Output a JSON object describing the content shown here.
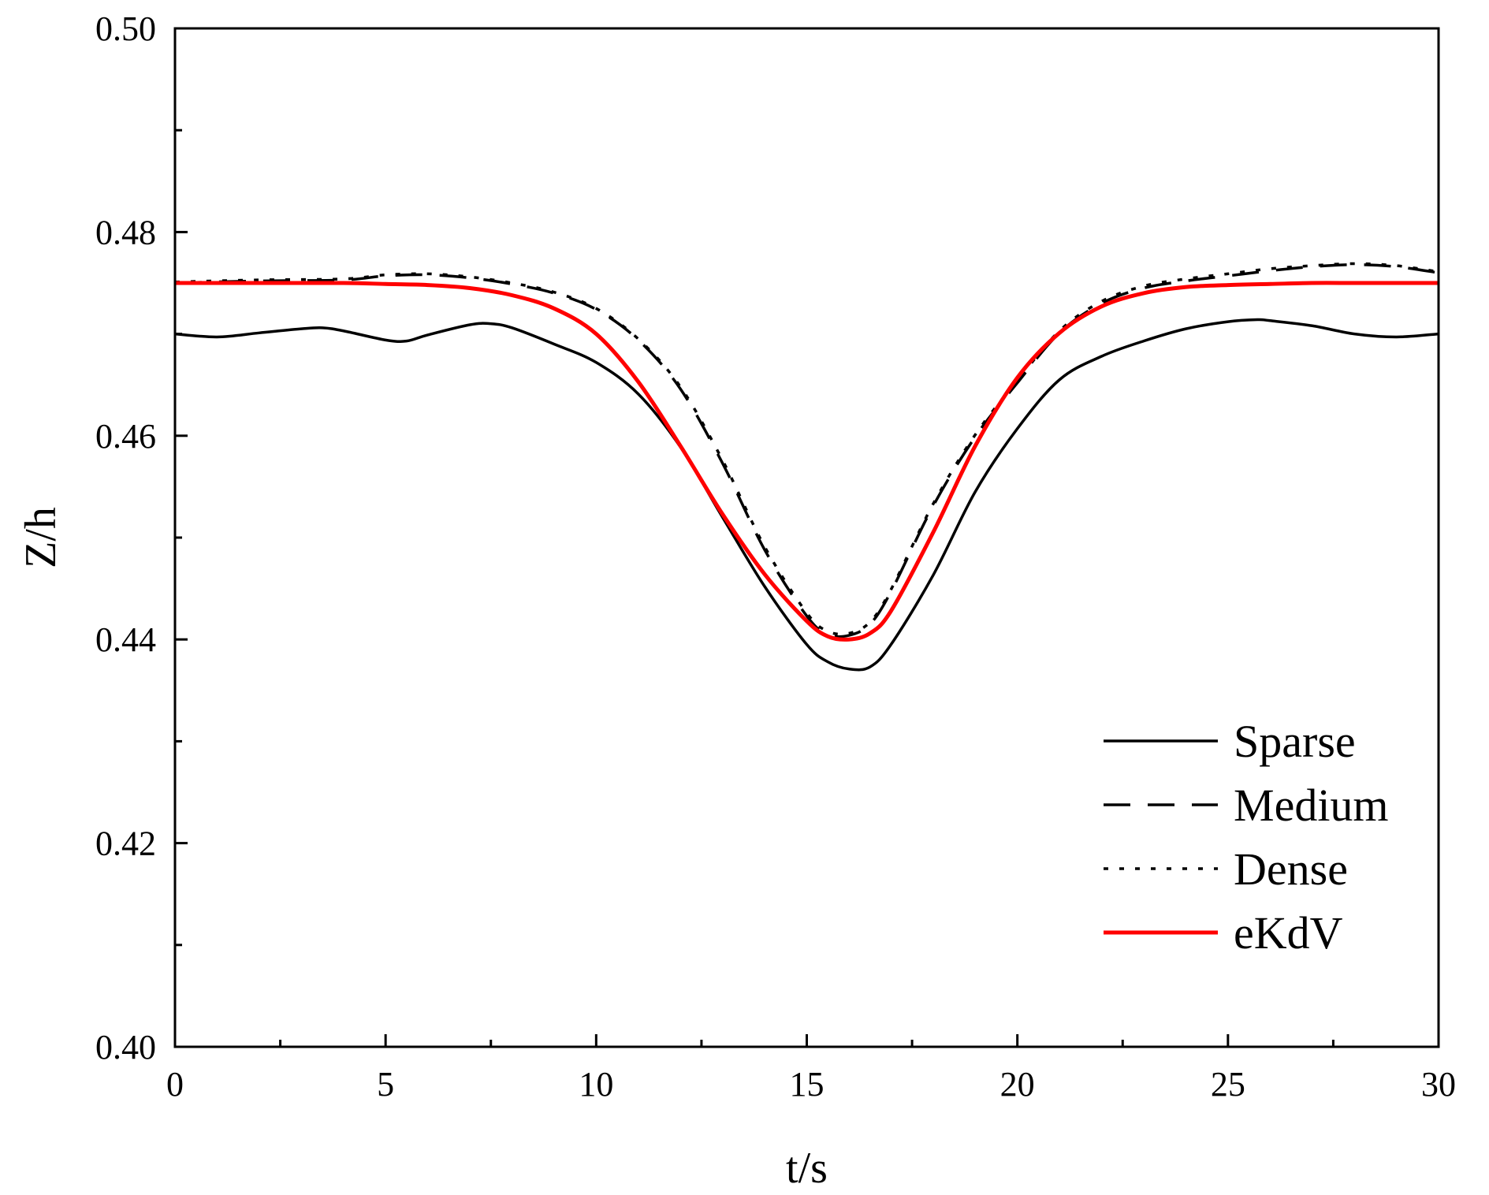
{
  "chart_data": {
    "type": "line",
    "title": "",
    "xlabel": "t/s",
    "ylabel": "Z/h",
    "xlim": [
      0,
      30
    ],
    "ylim": [
      0.4,
      0.5
    ],
    "xticks": [
      0,
      5,
      10,
      15,
      20,
      25,
      30
    ],
    "xtick_labels": [
      "0",
      "5",
      "10",
      "15",
      "20",
      "25",
      "30"
    ],
    "yticks": [
      0.4,
      0.42,
      0.44,
      0.46,
      0.48,
      0.5
    ],
    "ytick_labels": [
      "0.40",
      "0.42",
      "0.44",
      "0.46",
      "0.48",
      "0.50"
    ],
    "grid": false,
    "legend_position": "bottom-right",
    "series": [
      {
        "name": "Sparse",
        "style": "solid",
        "color": "#000000",
        "x": [
          0,
          1,
          2,
          3,
          3.5,
          4,
          5,
          5.5,
          6,
          7,
          7.5,
          8,
          9,
          10,
          11,
          12,
          13,
          14,
          15,
          15.5,
          16,
          16.5,
          17,
          18,
          19,
          20,
          21,
          22,
          23,
          24,
          25,
          25.7,
          26,
          27,
          28,
          29,
          30
        ],
        "y": [
          0.47,
          0.4697,
          0.4701,
          0.4705,
          0.4706,
          0.4703,
          0.4694,
          0.4693,
          0.4699,
          0.4709,
          0.471,
          0.4706,
          0.469,
          0.4672,
          0.4641,
          0.4589,
          0.452,
          0.4452,
          0.4395,
          0.4378,
          0.4371,
          0.4373,
          0.4395,
          0.4463,
          0.4545,
          0.4607,
          0.4655,
          0.4678,
          0.4693,
          0.4705,
          0.4712,
          0.4714,
          0.4713,
          0.4708,
          0.47,
          0.4697,
          0.47
        ]
      },
      {
        "name": "Medium",
        "style": "dashed",
        "color": "#000000",
        "x": [
          0,
          2,
          4,
          5,
          6,
          7,
          8,
          9,
          10,
          11,
          12,
          13,
          14,
          15,
          15.5,
          16,
          16.5,
          17,
          18,
          19,
          20,
          21,
          22,
          23,
          24,
          25,
          26,
          27,
          28,
          29,
          30
        ],
        "y": [
          0.475,
          0.4752,
          0.4753,
          0.4757,
          0.4758,
          0.4755,
          0.4749,
          0.474,
          0.4724,
          0.4694,
          0.4646,
          0.4573,
          0.4488,
          0.4423,
          0.4405,
          0.4404,
          0.4415,
          0.4447,
          0.4531,
          0.4599,
          0.4652,
          0.4701,
          0.473,
          0.4745,
          0.4752,
          0.4757,
          0.4762,
          0.4766,
          0.4768,
          0.4766,
          0.476
        ]
      },
      {
        "name": "Dense",
        "style": "dotted",
        "color": "#000000",
        "x": [
          0,
          2,
          4,
          5,
          6,
          7,
          8,
          9,
          10,
          11,
          12,
          13,
          14,
          15,
          15.5,
          16,
          16.5,
          17,
          18,
          19,
          20,
          21,
          22,
          23,
          24,
          25,
          26,
          27,
          28,
          29,
          30
        ],
        "y": [
          0.4751,
          0.4753,
          0.4754,
          0.4758,
          0.4759,
          0.4756,
          0.475,
          0.4741,
          0.4725,
          0.4695,
          0.4648,
          0.4576,
          0.4491,
          0.4426,
          0.4408,
          0.4406,
          0.4417,
          0.4449,
          0.4533,
          0.4601,
          0.4654,
          0.4703,
          0.4732,
          0.4747,
          0.4754,
          0.4759,
          0.4764,
          0.4767,
          0.4769,
          0.4767,
          0.4761
        ]
      },
      {
        "name": "eKdV",
        "style": "solid",
        "color": "#ff0000",
        "x": [
          0,
          2,
          4,
          5,
          6,
          7,
          8,
          9,
          10,
          11,
          12,
          13,
          14,
          15,
          15.5,
          16,
          16.5,
          17,
          18,
          19,
          20,
          21,
          22,
          23,
          24,
          25,
          26,
          27,
          28,
          29,
          30
        ],
        "y": [
          0.475,
          0.475,
          0.475,
          0.4749,
          0.4748,
          0.4745,
          0.4738,
          0.4725,
          0.47,
          0.4653,
          0.459,
          0.4523,
          0.4464,
          0.4418,
          0.4403,
          0.44,
          0.4406,
          0.4428,
          0.4505,
          0.459,
          0.4657,
          0.4701,
          0.4727,
          0.474,
          0.4746,
          0.4748,
          0.4749,
          0.475,
          0.475,
          0.475,
          0.475
        ]
      }
    ]
  }
}
